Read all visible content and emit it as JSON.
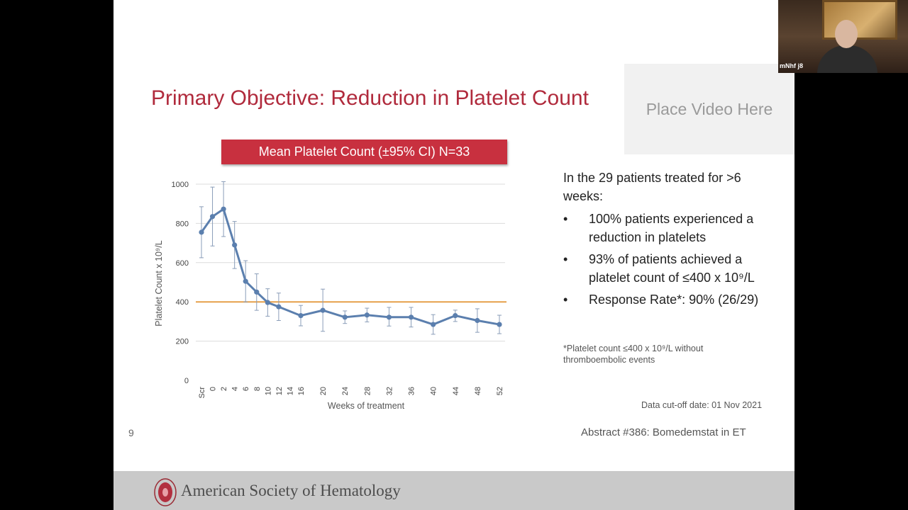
{
  "slide": {
    "title": "Primary Objective: Reduction in Platelet Count",
    "video_placeholder": "Place Video Here",
    "banner": "Mean Platelet Count (±95% CI) N=33",
    "slide_number": "9",
    "abstract": "Abstract #386: Bomedemstat in ET",
    "cutoff": "Data cut-off date: 01 Nov 2021",
    "intro": "In the 29 patients treated for >6 weeks:",
    "bullets": [
      "100% patients experienced a reduction in platelets",
      "93% of patients achieved a platelet count of ≤400 x 10⁹/L",
      "Response Rate*: 90% (26/29)"
    ],
    "footnote": "*Platelet count  ≤400 x 10⁹/L without thromboembolic events",
    "footer_org": "American Society of Hematology"
  },
  "webcam": {
    "label": "mNhf j8"
  },
  "chart_data": {
    "type": "line",
    "xlabel": "Weeks of treatment",
    "ylabel": "Platelet Count x 10⁹/L",
    "ylim": [
      0,
      1000
    ],
    "yticks": [
      0,
      200,
      400,
      600,
      800,
      1000
    ],
    "grid": true,
    "categories": [
      "Scr",
      "0",
      "2",
      "4",
      "6",
      "8",
      "10",
      "12",
      "14",
      "16",
      "20",
      "24",
      "28",
      "32",
      "36",
      "40",
      "44",
      "48",
      "52"
    ],
    "weeks": [
      -2,
      0,
      2,
      4,
      6,
      8,
      10,
      12,
      14,
      16,
      20,
      24,
      28,
      32,
      36,
      40,
      44,
      48,
      52
    ],
    "series": [
      {
        "color": "#5b7fae",
        "points": [
          {
            "x": -2,
            "y": 755,
            "lo": 625,
            "hi": 885
          },
          {
            "x": 0,
            "y": 835,
            "lo": 685,
            "hi": 985
          },
          {
            "x": 2,
            "y": 873,
            "lo": 733,
            "hi": 1013
          },
          {
            "x": 4,
            "y": 690,
            "lo": 570,
            "hi": 810
          },
          {
            "x": 6,
            "y": 505,
            "lo": 400,
            "hi": 610
          },
          {
            "x": 8,
            "y": 450,
            "lo": 357,
            "hi": 543
          },
          {
            "x": 10,
            "y": 397,
            "lo": 327,
            "hi": 467
          },
          {
            "x": 12,
            "y": 375,
            "lo": 305,
            "hi": 445
          },
          {
            "x": 16,
            "y": 330,
            "lo": 278,
            "hi": 382
          },
          {
            "x": 20,
            "y": 357,
            "lo": 250,
            "hi": 465
          },
          {
            "x": 24,
            "y": 322,
            "lo": 290,
            "hi": 354
          },
          {
            "x": 28,
            "y": 333,
            "lo": 298,
            "hi": 368
          },
          {
            "x": 32,
            "y": 322,
            "lo": 277,
            "hi": 372
          },
          {
            "x": 36,
            "y": 322,
            "lo": 272,
            "hi": 372
          },
          {
            "x": 40,
            "y": 285,
            "lo": 235,
            "hi": 335
          },
          {
            "x": 44,
            "y": 330,
            "lo": 300,
            "hi": 358
          },
          {
            "x": 48,
            "y": 305,
            "lo": 245,
            "hi": 365
          },
          {
            "x": 52,
            "y": 285,
            "lo": 238,
            "hi": 332
          }
        ]
      }
    ],
    "reference_line": {
      "y": 400,
      "color": "#e6a04a"
    }
  }
}
